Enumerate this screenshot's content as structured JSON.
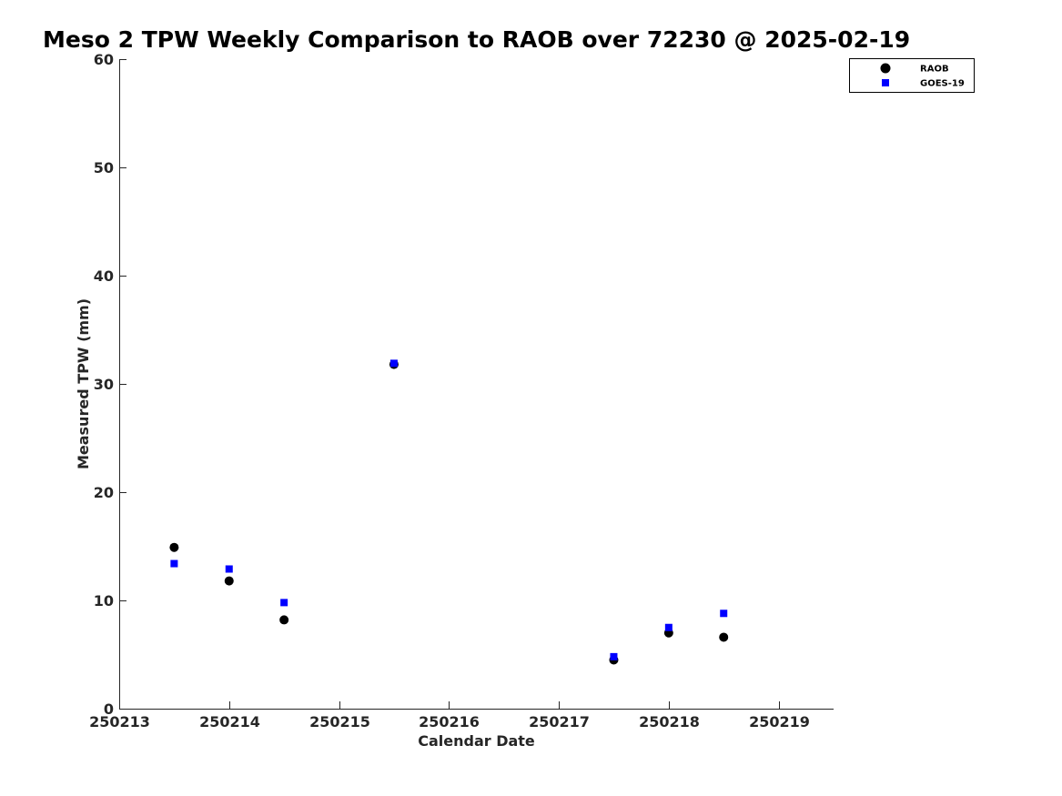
{
  "chart_data": {
    "type": "scatter",
    "title": "Meso 2 TPW Weekly Comparison to RAOB over 72230 @ 2025-02-19",
    "xlabel": "Calendar Date",
    "ylabel": "Measured TPW (mm)",
    "xlim": [
      0,
      6.5
    ],
    "ylim": [
      0,
      60
    ],
    "xticks": [
      0,
      1,
      2,
      3,
      4,
      5,
      6
    ],
    "xtick_labels": [
      "250213",
      "250214",
      "250215",
      "250216",
      "250217",
      "250218",
      "250219"
    ],
    "yticks": [
      0,
      10,
      20,
      30,
      40,
      50,
      60
    ],
    "ytick_labels": [
      "0",
      "10",
      "20",
      "30",
      "40",
      "50",
      "60"
    ],
    "grid": false,
    "legend_position": "top-right",
    "series": [
      {
        "name": "RAOB",
        "marker": "circle",
        "color": "#000000",
        "x": [
          0.5,
          1.0,
          1.5,
          2.5,
          4.5,
          5.0,
          5.5
        ],
        "y": [
          14.9,
          11.8,
          8.2,
          31.8,
          4.5,
          7.0,
          6.6
        ]
      },
      {
        "name": "GOES-19",
        "marker": "square",
        "color": "#0000ff",
        "x": [
          0.5,
          1.0,
          1.5,
          2.5,
          4.5,
          5.0,
          5.5
        ],
        "y": [
          13.4,
          12.9,
          9.8,
          31.9,
          4.8,
          7.5,
          8.8
        ]
      }
    ]
  }
}
